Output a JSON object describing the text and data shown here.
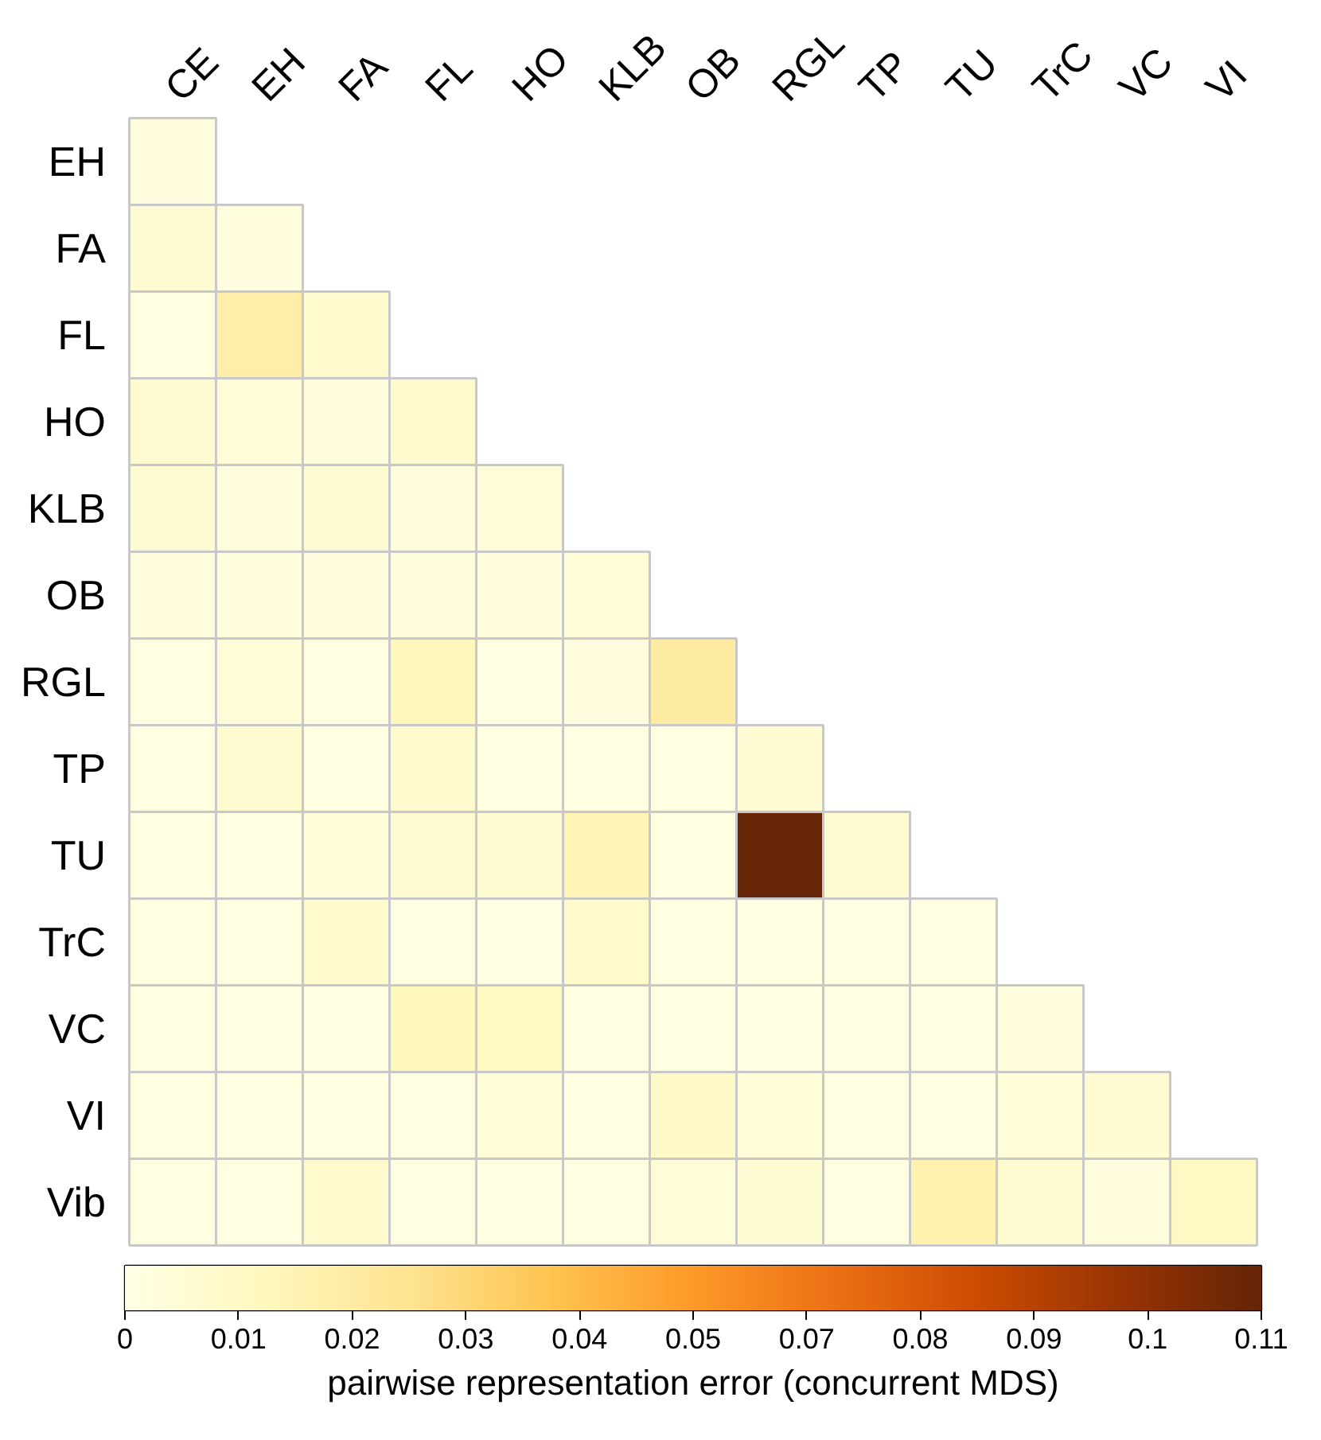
{
  "chart_data": {
    "type": "heatmap",
    "categories": [
      "CE",
      "EH",
      "FA",
      "FL",
      "HO",
      "KLB",
      "OB",
      "RGL",
      "TP",
      "TU",
      "TrC",
      "VC",
      "VI"
    ],
    "y_categories": [
      "EH",
      "FA",
      "FL",
      "HO",
      "KLB",
      "OB",
      "RGL",
      "TP",
      "TU",
      "TrC",
      "VC",
      "VI",
      "Vib"
    ],
    "cells": [
      [
        0.003,
        null,
        null,
        null,
        null,
        null,
        null,
        null,
        null,
        null,
        null,
        null,
        null
      ],
      [
        0.006,
        0.003,
        null,
        null,
        null,
        null,
        null,
        null,
        null,
        null,
        null,
        null,
        null
      ],
      [
        0.002,
        0.02,
        0.008,
        null,
        null,
        null,
        null,
        null,
        null,
        null,
        null,
        null,
        null
      ],
      [
        0.007,
        0.005,
        0.003,
        0.008,
        null,
        null,
        null,
        null,
        null,
        null,
        null,
        null,
        null
      ],
      [
        0.006,
        0.003,
        0.006,
        0.003,
        0.005,
        null,
        null,
        null,
        null,
        null,
        null,
        null,
        null
      ],
      [
        0.003,
        0.003,
        0.003,
        0.003,
        0.003,
        0.005,
        null,
        null,
        null,
        null,
        null,
        null,
        null
      ],
      [
        0.002,
        0.005,
        0.002,
        0.014,
        0.002,
        0.003,
        0.022,
        null,
        null,
        null,
        null,
        null,
        null
      ],
      [
        0.002,
        0.007,
        0.002,
        0.008,
        0.002,
        0.002,
        0.002,
        0.006,
        null,
        null,
        null,
        null,
        null
      ],
      [
        0.002,
        0.002,
        0.005,
        0.007,
        0.006,
        0.016,
        0.002,
        0.11,
        0.007,
        null,
        null,
        null,
        null
      ],
      [
        0.002,
        0.002,
        0.008,
        0.001,
        0.001,
        0.009,
        0.002,
        0.002,
        0.002,
        0.002,
        null,
        null,
        null
      ],
      [
        0.002,
        0.002,
        0.002,
        0.014,
        0.012,
        0.002,
        0.002,
        0.002,
        0.002,
        0.002,
        0.003,
        null,
        null
      ],
      [
        0.002,
        0.002,
        0.002,
        0.001,
        0.005,
        0.002,
        0.01,
        0.005,
        0.002,
        0.002,
        0.005,
        0.006,
        null
      ],
      [
        0.002,
        0.002,
        0.008,
        0.002,
        0.002,
        0.002,
        0.005,
        0.006,
        0.002,
        0.018,
        0.007,
        0.003,
        0.012
      ]
    ],
    "clim": [
      0,
      0.11
    ],
    "cticks": [
      0,
      {
        "value": 0.011,
        "label": "0.01"
      },
      {
        "value": 0.022,
        "label": "0.02"
      },
      {
        "value": 0.033,
        "label": "0.03"
      },
      {
        "value": 0.044,
        "label": "0.04"
      },
      {
        "value": 0.055,
        "label": "0.05"
      },
      {
        "value": 0.066,
        "label": "0.07"
      },
      {
        "value": 0.077,
        "label": "0.08"
      },
      {
        "value": 0.088,
        "label": "0.09"
      },
      {
        "value": 0.099,
        "label": "0.1"
      },
      0.11
    ],
    "clabel": "pairwise representation error (concurrent MDS)"
  }
}
